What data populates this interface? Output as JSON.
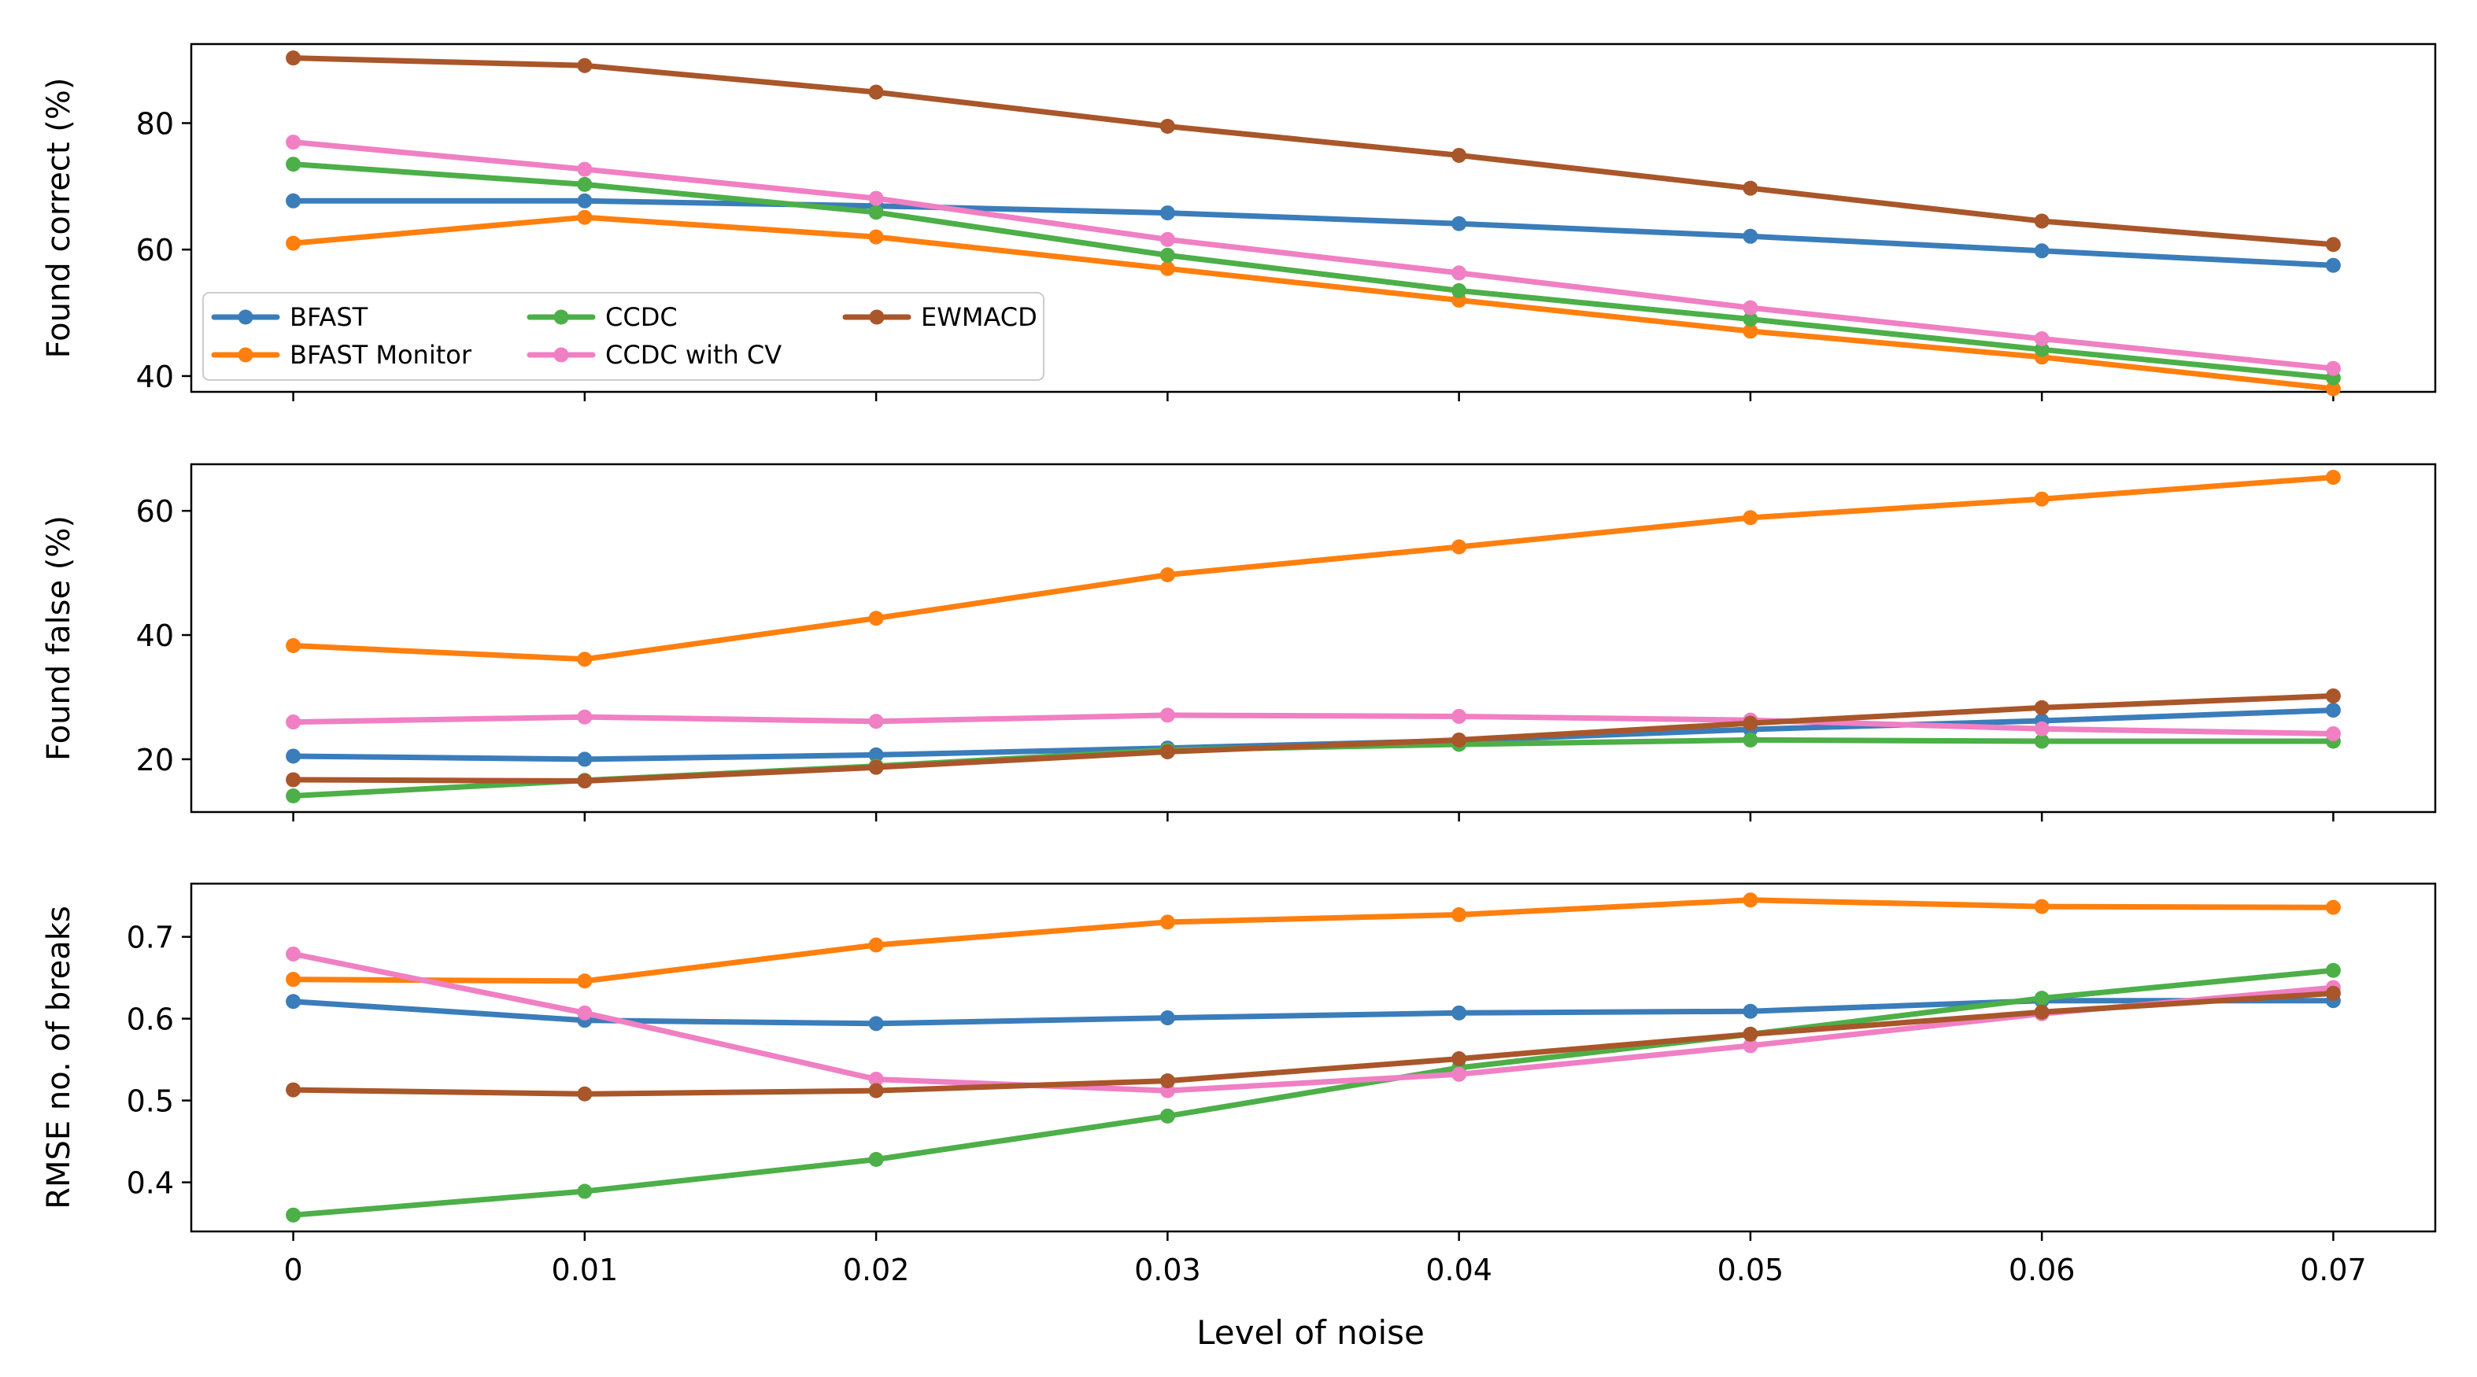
{
  "figure": {
    "xlabel": "Level of noise"
  },
  "legend": {
    "items": [
      {
        "name": "BFAST",
        "color": "#3A7DBA"
      },
      {
        "name": "BFAST Monitor",
        "color": "#FF7F0E"
      },
      {
        "name": "CCDC",
        "color": "#4CAF48"
      },
      {
        "name": "CCDC with CV",
        "color": "#F07FC4"
      },
      {
        "name": "EWMACD",
        "color": "#A9562A"
      }
    ]
  },
  "chart_data": [
    {
      "type": "line",
      "ylabel": "Found correct (%)",
      "x": [
        0,
        0.01,
        0.02,
        0.03,
        0.04,
        0.05,
        0.06,
        0.07
      ],
      "x_tick_labels": [
        "0",
        "0.01",
        "0.02",
        "0.03",
        "0.04",
        "0.05",
        "0.06",
        "0.07"
      ],
      "ylim": [
        37.5,
        92.5
      ],
      "y_ticks": [
        40,
        60,
        80
      ],
      "legend_position": "lower-left",
      "series": [
        {
          "name": "BFAST",
          "color": "#3A7DBA",
          "values": [
            67.7,
            67.7,
            66.9,
            65.8,
            64.1,
            62.1,
            59.8,
            57.5
          ]
        },
        {
          "name": "BFAST Monitor",
          "color": "#FF7F0E",
          "values": [
            61.0,
            65.1,
            62.0,
            57.0,
            52.0,
            47.1,
            43.0,
            38.0
          ]
        },
        {
          "name": "CCDC",
          "color": "#4CAF48",
          "values": [
            73.5,
            70.3,
            65.9,
            59.1,
            53.5,
            49.0,
            44.2,
            39.7
          ]
        },
        {
          "name": "CCDC with CV",
          "color": "#F07FC4",
          "values": [
            77.0,
            72.7,
            68.1,
            61.6,
            56.3,
            50.8,
            45.9,
            41.2
          ]
        },
        {
          "name": "EWMACD",
          "color": "#A9562A",
          "values": [
            90.3,
            89.1,
            84.9,
            79.5,
            74.9,
            69.7,
            64.5,
            60.8
          ]
        }
      ]
    },
    {
      "type": "line",
      "ylabel": "Found false (%)",
      "x": [
        0,
        0.01,
        0.02,
        0.03,
        0.04,
        0.05,
        0.06,
        0.07
      ],
      "x_tick_labels": [
        "0",
        "0.01",
        "0.02",
        "0.03",
        "0.04",
        "0.05",
        "0.06",
        "0.07"
      ],
      "ylim": [
        11.5,
        67.5
      ],
      "y_ticks": [
        20,
        40,
        60
      ],
      "series": [
        {
          "name": "BFAST",
          "color": "#3A7DBA",
          "values": [
            20.5,
            20.0,
            20.7,
            21.8,
            23.0,
            24.8,
            26.2,
            27.9
          ]
        },
        {
          "name": "BFAST Monitor",
          "color": "#FF7F0E",
          "values": [
            38.3,
            36.1,
            42.7,
            49.7,
            54.2,
            58.9,
            61.9,
            65.4
          ]
        },
        {
          "name": "CCDC",
          "color": "#4CAF48",
          "values": [
            14.1,
            16.6,
            18.9,
            21.5,
            22.4,
            23.1,
            22.9,
            22.9
          ]
        },
        {
          "name": "CCDC with CV",
          "color": "#F07FC4",
          "values": [
            26.0,
            26.8,
            26.1,
            27.1,
            26.9,
            26.3,
            24.9,
            24.1
          ]
        },
        {
          "name": "EWMACD",
          "color": "#A9562A",
          "values": [
            16.7,
            16.5,
            18.7,
            21.2,
            23.1,
            25.8,
            28.3,
            30.2
          ]
        }
      ]
    },
    {
      "type": "line",
      "ylabel": "RMSE no. of breaks",
      "x": [
        0,
        0.01,
        0.02,
        0.03,
        0.04,
        0.05,
        0.06,
        0.07
      ],
      "x_tick_labels": [
        "0",
        "0.01",
        "0.02",
        "0.03",
        "0.04",
        "0.05",
        "0.06",
        "0.07"
      ],
      "ylim": [
        0.34,
        0.765
      ],
      "y_ticks": [
        0.4,
        0.5,
        0.6,
        0.7
      ],
      "y_tick_labels": [
        "0.4",
        "0.5",
        "0.6",
        "0.7"
      ],
      "series": [
        {
          "name": "BFAST",
          "color": "#3A7DBA",
          "values": [
            0.621,
            0.598,
            0.594,
            0.601,
            0.607,
            0.609,
            0.622,
            0.622
          ]
        },
        {
          "name": "BFAST Monitor",
          "color": "#FF7F0E",
          "values": [
            0.648,
            0.646,
            0.69,
            0.718,
            0.727,
            0.745,
            0.737,
            0.736
          ]
        },
        {
          "name": "CCDC",
          "color": "#4CAF48",
          "values": [
            0.36,
            0.389,
            0.428,
            0.481,
            0.54,
            0.581,
            0.625,
            0.659
          ]
        },
        {
          "name": "CCDC with CV",
          "color": "#F07FC4",
          "values": [
            0.679,
            0.607,
            0.526,
            0.512,
            0.532,
            0.567,
            0.606,
            0.638
          ]
        },
        {
          "name": "EWMACD",
          "color": "#A9562A",
          "values": [
            0.513,
            0.508,
            0.512,
            0.524,
            0.551,
            0.581,
            0.608,
            0.631
          ]
        }
      ]
    }
  ]
}
